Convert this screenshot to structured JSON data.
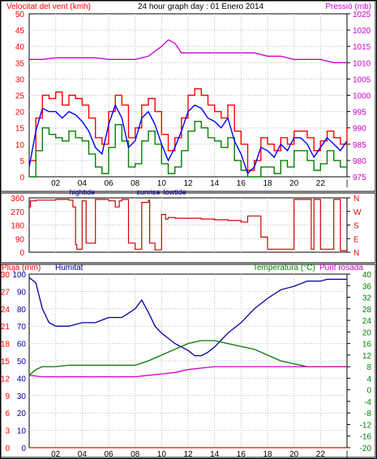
{
  "chart_data": [
    {
      "type": "line",
      "title": "24 hour graph day : 01 Enero 2014",
      "ylabel_left": "Velocitat del vent (kmh)",
      "ylabel_right": "Pressió (mb)",
      "ylim_left": [
        0,
        50
      ],
      "ylim_right": [
        975,
        1025
      ],
      "yticks_left": [
        "0",
        "5",
        "10",
        "15",
        "20",
        "25",
        "30",
        "35",
        "40",
        "45",
        "50"
      ],
      "yticks_right": [
        "975",
        "980",
        "985",
        "990",
        "995",
        "1000",
        "1005",
        "1010",
        "1015",
        "1020",
        "1025"
      ],
      "x_ticks": [
        "02",
        "04",
        "06",
        "08",
        "10",
        "12",
        "14",
        "16",
        "18",
        "20",
        "22"
      ],
      "x_range_hours": [
        0,
        24
      ],
      "annotations": [
        "hightide",
        "sunrise",
        "lowtide"
      ],
      "colors": {
        "gust": "#ff0000",
        "avg_speed": "#0000ff",
        "wind_min": "#008000",
        "pressure": "#cc00cc"
      },
      "series": [
        {
          "x": [
            0,
            0.5,
            1,
            1.5,
            2,
            2.5,
            3,
            3.5,
            4,
            4.5,
            5,
            5.5,
            6,
            6.5,
            7,
            7.5,
            8,
            8.5,
            9,
            9.5,
            10,
            10.5,
            11,
            11.5,
            12,
            12.5,
            13,
            13.5,
            14,
            14.5,
            15,
            15.5,
            16,
            16.5,
            17,
            17.5,
            18,
            18.5,
            19,
            19.5,
            20,
            20.5,
            21,
            21.5,
            22,
            22.5,
            23,
            23.5,
            24
          ],
          "values": [
            5,
            18,
            25,
            24,
            26,
            22,
            25,
            24,
            22,
            18,
            12,
            10,
            20,
            25,
            22,
            12,
            15,
            22,
            24,
            20,
            13,
            8,
            12,
            18,
            25,
            27,
            25,
            22,
            20,
            18,
            22,
            14,
            10,
            2,
            5,
            12,
            10,
            8,
            12,
            10,
            14,
            14,
            12,
            8,
            11,
            14,
            12,
            10,
            15
          ]
        },
        {
          "x": [
            0,
            0.5,
            1,
            1.5,
            2,
            2.5,
            3,
            3.5,
            4,
            4.5,
            5,
            5.5,
            6,
            6.5,
            7,
            7.5,
            8,
            8.5,
            9,
            9.5,
            10,
            10.5,
            11,
            11.5,
            12,
            12.5,
            13,
            13.5,
            14,
            14.5,
            15,
            15.5,
            16,
            16.5,
            17,
            17.5,
            18,
            18.5,
            19,
            19.5,
            20,
            20.5,
            21,
            21.5,
            22,
            22.5,
            23,
            23.5,
            24
          ],
          "values": [
            3,
            14,
            21,
            20,
            20,
            18,
            20,
            19,
            17,
            14,
            9,
            7,
            16,
            22,
            18,
            9,
            11,
            18,
            20,
            16,
            10,
            5,
            9,
            14,
            20,
            22,
            21,
            18,
            17,
            15,
            18,
            11,
            7,
            1,
            3,
            9,
            8,
            6,
            10,
            8,
            12,
            12,
            10,
            6,
            9,
            12,
            10,
            8,
            11
          ]
        },
        {
          "x": [
            0,
            0.5,
            1,
            1.5,
            2,
            2.5,
            3,
            3.5,
            4,
            4.5,
            5,
            5.5,
            6,
            6.5,
            7,
            7.5,
            8,
            8.5,
            9,
            9.5,
            10,
            10.5,
            11,
            11.5,
            12,
            12.5,
            13,
            13.5,
            14,
            14.5,
            15,
            15.5,
            16,
            16.5,
            17,
            17.5,
            18,
            18.5,
            19,
            19.5,
            20,
            20.5,
            21,
            21.5,
            22,
            22.5,
            23,
            23.5,
            24
          ],
          "values": [
            0,
            8,
            15,
            13,
            12,
            11,
            14,
            12,
            11,
            7,
            3,
            1,
            9,
            16,
            11,
            3,
            4,
            11,
            14,
            10,
            4,
            1,
            3,
            8,
            14,
            17,
            15,
            12,
            11,
            9,
            12,
            5,
            2,
            0,
            0,
            3,
            3,
            1,
            5,
            3,
            8,
            8,
            5,
            2,
            4,
            8,
            5,
            3,
            4
          ]
        },
        {
          "x": [
            0,
            1,
            2,
            3,
            4,
            5,
            6,
            7,
            8,
            9,
            10,
            10.5,
            11,
            11.5,
            12,
            13,
            14,
            15,
            16,
            17,
            18,
            19,
            20,
            21,
            22,
            23,
            24
          ],
          "values": [
            1011,
            1011,
            1011.5,
            1011.5,
            1011.5,
            1011.5,
            1011,
            1011,
            1011,
            1012,
            1015,
            1017,
            1016,
            1013,
            1013,
            1013,
            1013,
            1013,
            1013,
            1013,
            1012,
            1012,
            1011,
            1011,
            1011,
            1010,
            1010
          ]
        }
      ]
    },
    {
      "type": "line",
      "ylim": [
        0,
        360
      ],
      "yticks_left": [
        "0",
        "90",
        "180",
        "270",
        "360"
      ],
      "yticks_right": [
        "N",
        "E",
        "S",
        "W",
        "N"
      ],
      "colors": {
        "direction": "#cc0000"
      },
      "series": [
        {
          "x": [
            0,
            0.1,
            0.5,
            2,
            3,
            3.3,
            3.5,
            3.6,
            4,
            4.3,
            5,
            6,
            6.5,
            6.8,
            7,
            7.5,
            8,
            8.5,
            9,
            9.1,
            9.5,
            10,
            10.3,
            10.5,
            11,
            12,
            13,
            14,
            15,
            16,
            16.5,
            17,
            17.5,
            18,
            18.5,
            19,
            19.5,
            20,
            20.5,
            21,
            21.3,
            21.5,
            22,
            22.5,
            23,
            23.5,
            24
          ],
          "values": [
            300,
            340,
            345,
            350,
            345,
            300,
            50,
            20,
            340,
            60,
            350,
            340,
            300,
            340,
            350,
            60,
            20,
            330,
            345,
            60,
            15,
            250,
            220,
            230,
            225,
            225,
            220,
            215,
            210,
            200,
            240,
            240,
            100,
            20,
            20,
            20,
            20,
            350,
            350,
            350,
            20,
            350,
            20,
            20,
            350,
            10,
            0
          ]
        }
      ]
    },
    {
      "type": "line",
      "ylabel_left": "Pluja (mm)",
      "label_humidity": "Humitat",
      "ylabel_right": "Temperatura (°C)",
      "ylabel_right2": "Punt rosada",
      "ylim_left": [
        0,
        100
      ],
      "ylim_right": [
        -20,
        40
      ],
      "yticks_left": [
        "0",
        "3",
        "6",
        "9",
        "12",
        "15",
        "18",
        "21",
        "24",
        "27",
        "30"
      ],
      "yticks_humidity": [
        "0",
        "10",
        "20",
        "30",
        "40",
        "50",
        "60",
        "70",
        "80",
        "90",
        "100"
      ],
      "yticks_right": [
        "-20",
        "-16",
        "-12",
        "-8",
        "-4",
        "0",
        "4",
        "8",
        "12",
        "16",
        "20",
        "24",
        "28",
        "32",
        "36",
        "40"
      ],
      "x_ticks": [
        "02",
        "04",
        "06",
        "08",
        "10",
        "12",
        "14",
        "16",
        "18",
        "20",
        "22"
      ],
      "annotations": [
        "hightide",
        "sunrise",
        "lowtide"
      ],
      "colors": {
        "humidity": "#000099",
        "temperature": "#007700",
        "dewpoint": "#cc00cc",
        "rain": "#ff0000"
      },
      "series": [
        {
          "x": [
            0,
            0.5,
            1,
            1.5,
            2,
            3,
            4,
            5,
            6,
            7,
            8,
            8.5,
            9,
            9.5,
            10,
            11,
            12,
            12.5,
            13,
            13.5,
            14,
            15,
            16,
            17,
            18,
            19,
            20,
            21,
            22,
            22.5,
            23,
            24
          ],
          "values": [
            98,
            95,
            80,
            72,
            70,
            70,
            72,
            72,
            75,
            75,
            80,
            85,
            78,
            70,
            66,
            60,
            56,
            53,
            53,
            55,
            58,
            66,
            72,
            80,
            86,
            91,
            93,
            96,
            96,
            97,
            97,
            97
          ]
        },
        {
          "x": [
            0,
            0.5,
            1,
            2,
            3,
            4,
            5,
            6,
            7,
            8,
            9,
            10,
            11,
            12,
            12.5,
            13,
            14,
            15,
            16,
            17,
            18,
            19,
            20,
            21,
            22,
            23,
            24
          ],
          "values": [
            5,
            7,
            8,
            8,
            8.5,
            8.5,
            8.5,
            8.5,
            8.5,
            8.5,
            10,
            12,
            14,
            16,
            16.5,
            17,
            17,
            16,
            15,
            14,
            12,
            10,
            9,
            8,
            8,
            8,
            8
          ]
        },
        {
          "x": [
            0,
            1,
            2,
            3,
            4,
            5,
            6,
            7,
            8,
            9,
            10,
            11,
            12,
            13,
            14,
            15,
            16,
            17,
            18,
            19,
            20,
            21,
            22,
            23,
            24
          ],
          "values": [
            5,
            4.5,
            4.5,
            4.5,
            4.5,
            4.5,
            4.5,
            4.5,
            4.5,
            5,
            5.5,
            6,
            7,
            7.5,
            8,
            8,
            8,
            8,
            8,
            8,
            8,
            8,
            8,
            8,
            8
          ]
        },
        {
          "x": [
            0,
            24
          ],
          "values": [
            0,
            0
          ]
        }
      ]
    }
  ]
}
